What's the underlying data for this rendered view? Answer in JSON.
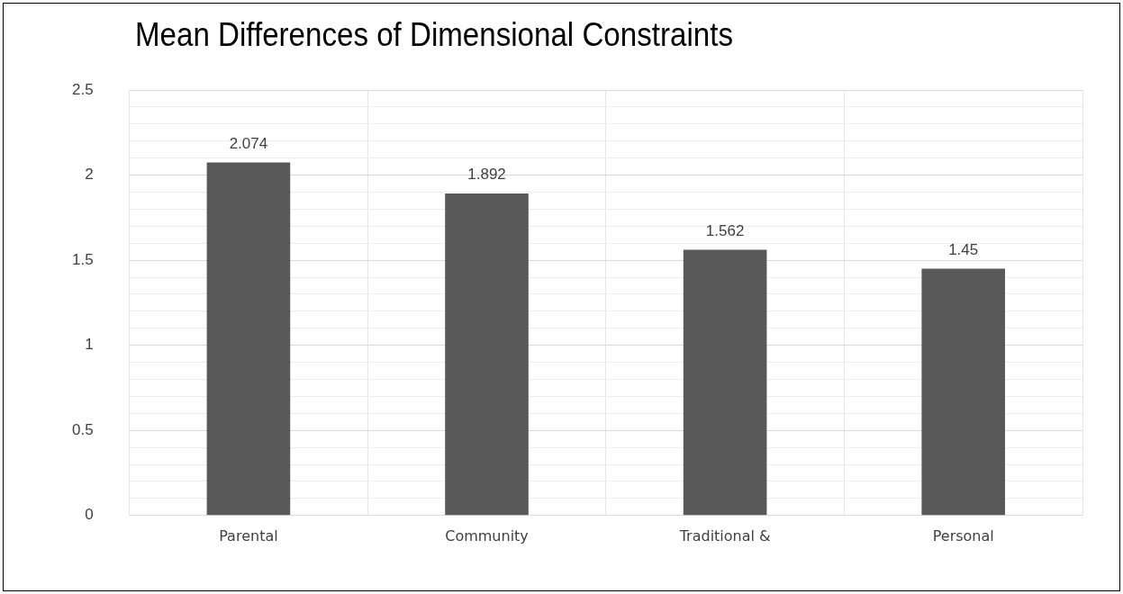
{
  "chart_data": {
    "type": "bar",
    "title": "Mean Differences of Dimensional Constraints",
    "categories": [
      "Parental",
      "Community",
      "Traditional &",
      "Personal"
    ],
    "values": [
      2.074,
      1.892,
      1.562,
      1.45
    ],
    "color": "#595959",
    "ylim": [
      0,
      2.5
    ],
    "yticks": [
      0,
      {
        "value": 0.1,
        "label": null
      },
      {
        "value": 0.2,
        "label": null
      },
      {
        "value": 0.3,
        "label": null
      },
      {
        "value": 0.4,
        "label": null
      },
      0.5,
      {
        "value": 0.6,
        "label": null
      },
      {
        "value": 0.7,
        "label": null
      },
      {
        "value": 0.8,
        "label": null
      },
      {
        "value": 0.9,
        "label": null
      },
      1,
      {
        "value": 1.1,
        "label": null
      },
      {
        "value": 1.2,
        "label": null
      },
      {
        "value": 1.3,
        "label": null
      },
      {
        "value": 1.4,
        "label": null
      },
      1.5,
      {
        "value": 1.6,
        "label": null
      },
      {
        "value": 1.7,
        "label": null
      },
      {
        "value": 1.8,
        "label": null
      },
      {
        "value": 1.9,
        "label": null
      },
      2,
      {
        "value": 2.1,
        "label": null
      },
      {
        "value": 2.2,
        "label": null
      },
      {
        "value": 2.3,
        "label": null
      },
      {
        "value": 2.4,
        "label": null
      },
      2.5
    ],
    "grid": true,
    "data_labels": true
  }
}
